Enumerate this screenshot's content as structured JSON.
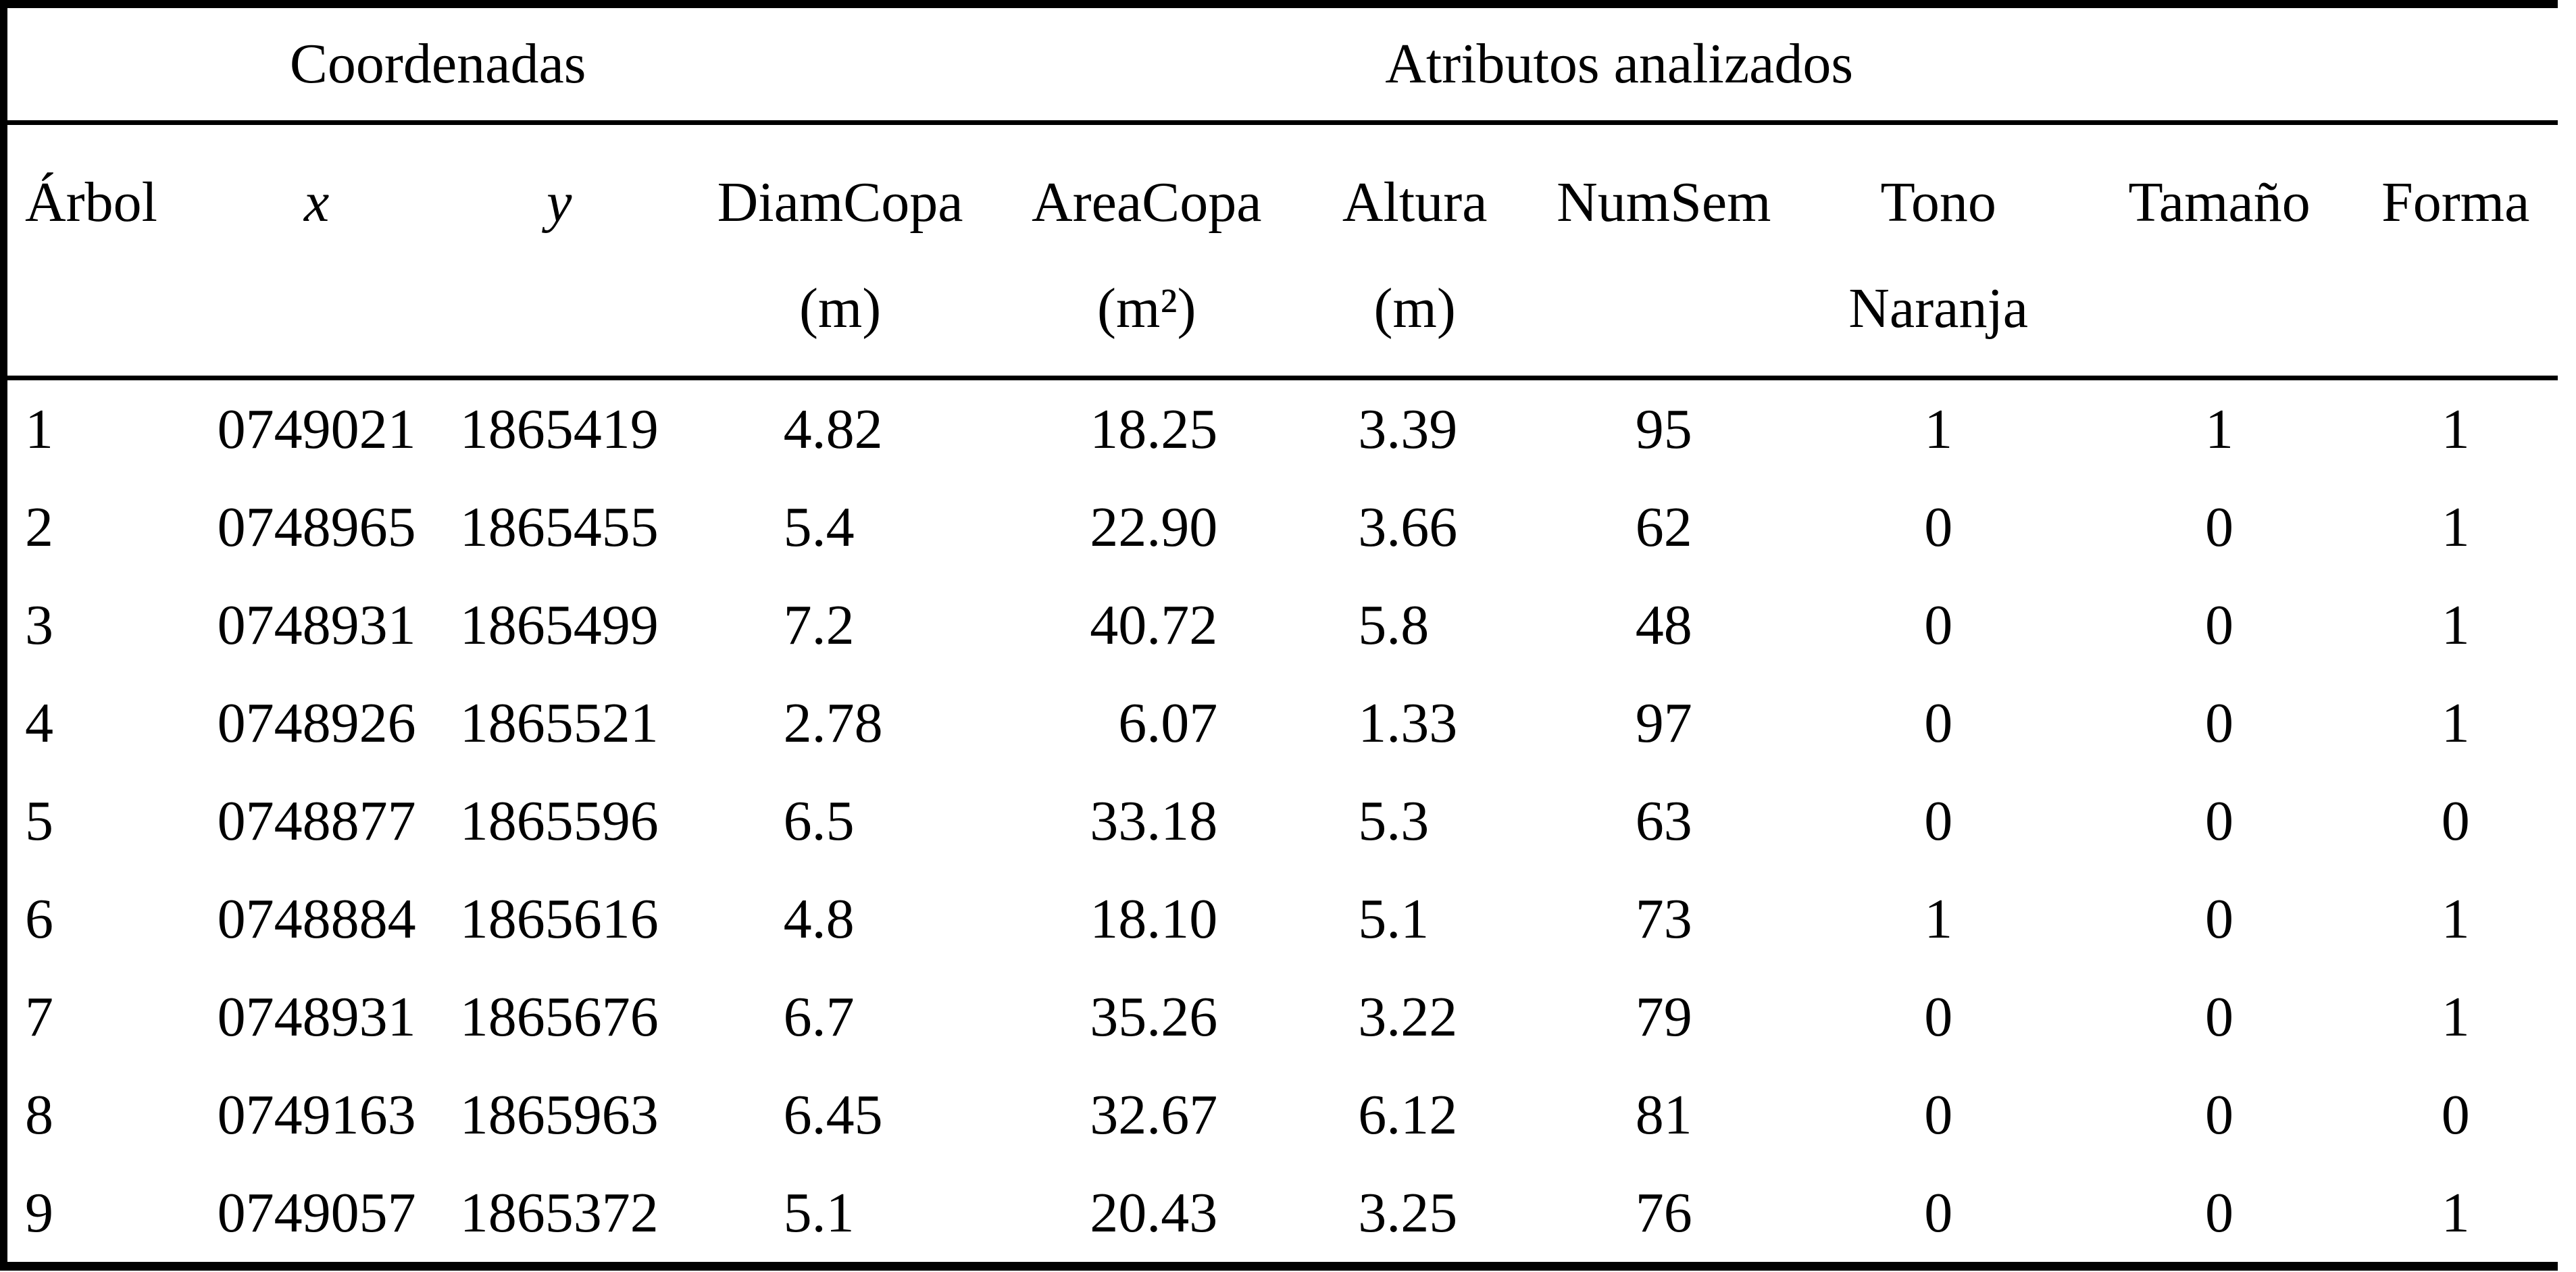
{
  "page": {
    "background": "#ffffff",
    "text_color": "#000000",
    "border_color": "#000000"
  },
  "table": {
    "group_headers": [
      {
        "label": "",
        "span": 1
      },
      {
        "label": "Coordenadas",
        "span": 2
      },
      {
        "label": "Atributos analizados",
        "span": 7
      }
    ],
    "columns": [
      {
        "key": "arbol",
        "line1": "Árbol",
        "line2": ""
      },
      {
        "key": "x",
        "line1": "x",
        "line2": ""
      },
      {
        "key": "y",
        "line1": "y",
        "line2": ""
      },
      {
        "key": "diamcopa",
        "line1": "DiamCopa",
        "line2": "(m)"
      },
      {
        "key": "areacopa",
        "line1": "AreaCopa",
        "line2": "(m²)"
      },
      {
        "key": "altura",
        "line1": "Altura",
        "line2": "(m)"
      },
      {
        "key": "numsem",
        "line1": "NumSem",
        "line2": ""
      },
      {
        "key": "tono-naranja",
        "line1": "Tono",
        "line2": "Naranja"
      },
      {
        "key": "tamano",
        "line1": "Tamaño",
        "line2": ""
      },
      {
        "key": "forma",
        "line1": "Forma",
        "line2": ""
      }
    ],
    "rows": [
      [
        "1",
        "0749021",
        "1865419",
        "4.82",
        "18.25",
        "3.39",
        "95",
        "1",
        "1",
        "1"
      ],
      [
        "2",
        "0748965",
        "1865455",
        "5.4",
        "22.90",
        "3.66",
        "62",
        "0",
        "0",
        "1"
      ],
      [
        "3",
        "0748931",
        "1865499",
        "7.2",
        "40.72",
        "5.8",
        "48",
        "0",
        "0",
        "1"
      ],
      [
        "4",
        "0748926",
        "1865521",
        "2.78",
        "6.07",
        "1.33",
        "97",
        "0",
        "0",
        "1"
      ],
      [
        "5",
        "0748877",
        "1865596",
        "6.5",
        "33.18",
        "5.3",
        "63",
        "0",
        "0",
        "0"
      ],
      [
        "6",
        "0748884",
        "1865616",
        "4.8",
        "18.10",
        "5.1",
        "73",
        "1",
        "0",
        "1"
      ],
      [
        "7",
        "0748931",
        "1865676",
        "6.7",
        "35.26",
        "3.22",
        "79",
        "0",
        "0",
        "1"
      ],
      [
        "8",
        "0749163",
        "1865963",
        "6.45",
        "32.67",
        "6.12",
        "81",
        "0",
        "0",
        "0"
      ],
      [
        "9",
        "0749057",
        "1865372",
        "5.1",
        "20.43",
        "3.25",
        "76",
        "0",
        "0",
        "1"
      ]
    ]
  }
}
